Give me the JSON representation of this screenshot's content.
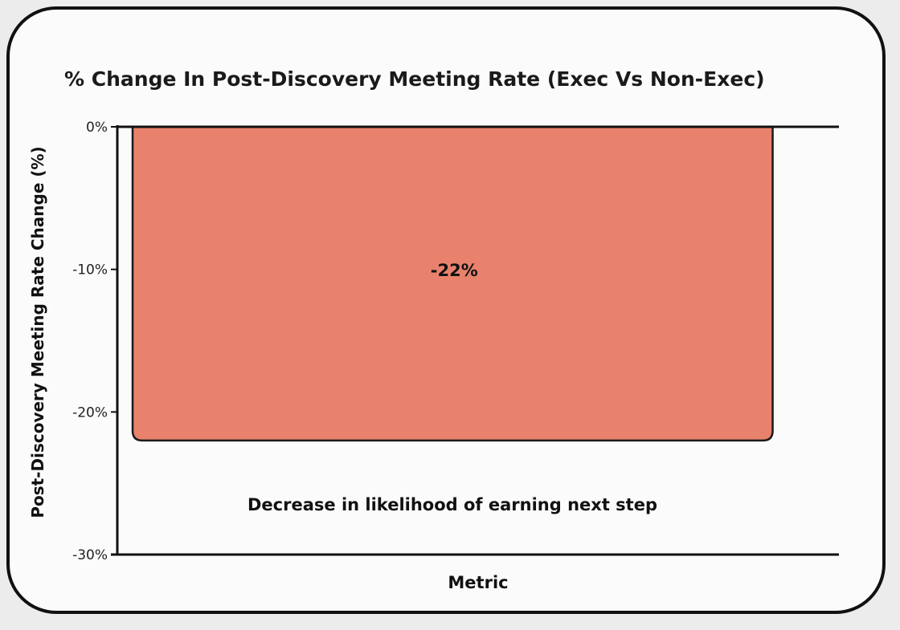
{
  "chart_data": {
    "type": "bar",
    "title": "% Change In Post-Discovery Meeting Rate (Exec Vs Non-Exec)",
    "xlabel": "Metric",
    "ylabel": "Post-Discovery Meeting Rate Change (%)",
    "categories": [
      ""
    ],
    "values": [
      -22
    ],
    "data_labels": [
      "-22%"
    ],
    "annotation": "Decrease in likelihood of earning next step",
    "ylim": [
      -30,
      0
    ],
    "yticks": [
      {
        "value": 0,
        "label": "0%"
      },
      {
        "value": -10,
        "label": "-10%"
      },
      {
        "value": -20,
        "label": "-20%"
      },
      {
        "value": -30,
        "label": "-30%"
      }
    ],
    "grid": false,
    "legend": "none",
    "colors": {
      "bar_fill": "#e8826d",
      "bar_stroke": "#1a1a1a",
      "axis": "#111111"
    }
  }
}
